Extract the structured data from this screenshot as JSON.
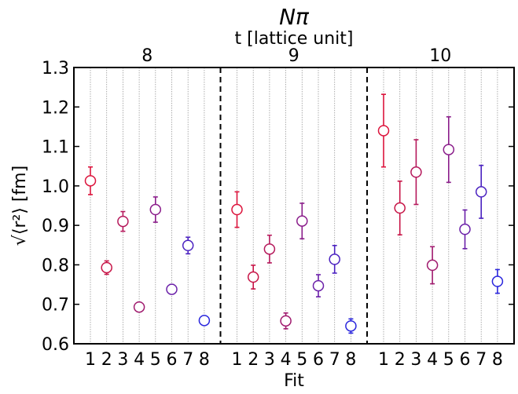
{
  "chart_data": {
    "type": "scatter",
    "title": "Nπ",
    "top_axis_label": "t [lattice unit]",
    "groups": [
      "8",
      "9",
      "10"
    ],
    "xlabel": "Fit",
    "ylabel": "√⟨r²⟩ [fm]",
    "fit_labels": [
      "1",
      "2",
      "3",
      "4",
      "5",
      "6",
      "7",
      "8"
    ],
    "ylim": [
      0.6,
      1.3
    ],
    "yticks": [
      "0.6",
      "0.7",
      "0.8",
      "0.9",
      "1.0",
      "1.1",
      "1.2",
      "1.3"
    ],
    "grid": "vertical dotted lines at each fit",
    "marker": "open circle with error bars",
    "colors": [
      "#dc143c",
      "#c71547",
      "#b5185b",
      "#a01a6e",
      "#8a1c8a",
      "#6a1fa8",
      "#4b22c0",
      "#2a26dd"
    ],
    "series": [
      {
        "values": [
          1.013,
          0.793,
          0.91,
          0.693,
          0.94,
          0.738,
          0.849,
          0.659
        ],
        "errors": [
          0.035,
          0.017,
          0.025,
          0.012,
          0.032,
          0.012,
          0.021,
          0.01
        ]
      },
      {
        "values": [
          0.94,
          0.769,
          0.84,
          0.658,
          0.911,
          0.747,
          0.814,
          0.645
        ],
        "errors": [
          0.045,
          0.03,
          0.035,
          0.02,
          0.045,
          0.028,
          0.035,
          0.018
        ]
      },
      {
        "values": [
          1.14,
          0.944,
          1.035,
          0.799,
          1.092,
          0.89,
          0.985,
          0.758
        ],
        "errors": [
          0.092,
          0.068,
          0.082,
          0.047,
          0.083,
          0.049,
          0.067,
          0.03
        ]
      }
    ]
  }
}
